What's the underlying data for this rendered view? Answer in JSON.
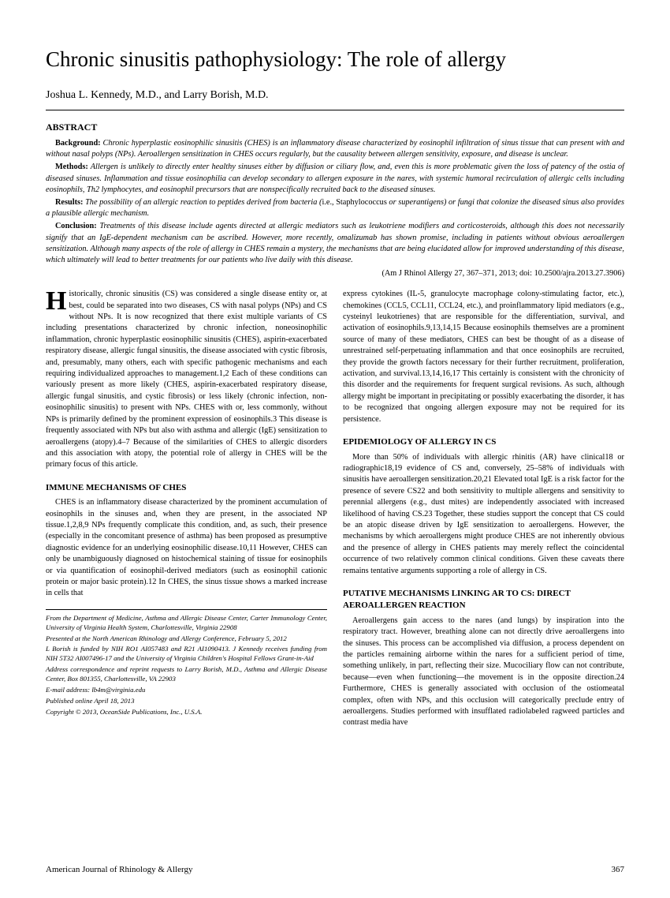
{
  "title": "Chronic sinusitis pathophysiology: The role of allergy",
  "authors": "Joshua L. Kennedy, M.D., and Larry Borish, M.D.",
  "abstract_heading": "ABSTRACT",
  "abstract": {
    "background_label": "Background:",
    "background": " Chronic hyperplastic eosinophilic sinusitis (CHES) is an inflammatory disease characterized by eosinophil infiltration of sinus tissue that can present with and without nasal polyps (NPs). Aeroallergen sensitization in CHES occurs regularly, but the causality between allergen sensitivity, exposure, and disease is unclear.",
    "methods_label": "Methods:",
    "methods": " Allergen is unlikely to directly enter healthy sinuses either by diffusion or ciliary flow, and, even this is more problematic given the loss of patency of the ostia of diseased sinuses. Inflammation and tissue eosinophilia can develop secondary to allergen exposure in the nares, with systemic humoral recirculation of allergic cells including eosinophils, Th2 lymphocytes, and eosinophil precursors that are nonspecifically recruited back to the diseased sinuses.",
    "results_label": "Results:",
    "results_pre": " The possibility of an allergic reaction to peptides derived from bacteria (",
    "results_mid": "i.e., Staphylococcus",
    "results_post": " or superantigens) or fungi that colonize the diseased sinus also provides a plausible allergic mechanism.",
    "conclusion_label": "Conclusion:",
    "conclusion": " Treatments of this disease include agents directed at allergic mediators such as leukotriene modifiers and corticosteroids, although this does not necessarily signify that an IgE-dependent mechanism can be ascribed. However, more recently, omalizumab has shown promise, including in patients without obvious aeroallergen sensitization. Although many aspects of the role of allergy in CHES remain a mystery, the mechanisms that are being elucidated allow for improved understanding of this disease, which ultimately will lead to better treatments for our patients who live daily with this disease."
  },
  "citation": "(Am J Rhinol Allergy 27, 367–371, 2013; doi: 10.2500/ajra.2013.27.3906)",
  "left_col": {
    "dropcap": "H",
    "intro": "istorically, chronic sinusitis (CS) was considered a single disease entity or, at best, could be separated into two diseases, CS with nasal polyps (NPs) and CS without NPs. It is now recognized that there exist multiple variants of CS including presentations characterized by chronic infection, noneosinophilic inflammation, chronic hyperplastic eosinophilic sinusitis (CHES), aspirin-exacerbated respiratory disease, allergic fungal sinusitis, the disease associated with cystic fibrosis, and, presumably, many others, each with specific pathogenic mechanisms and each requiring individualized approaches to management.1,2 Each of these conditions can variously present as more likely (CHES, aspirin-exacerbated respiratory disease, allergic fungal sinusitis, and cystic fibrosis) or less likely (chronic infection, non-eosinophilic sinusitis) to present with NPs. CHES with or, less commonly, without NPs is primarily defined by the prominent expression of eosinophils.3 This disease is frequently associated with NPs but also with asthma and allergic (IgE) sensitization to aeroallergens (atopy).4–7 Because of the similarities of CHES to allergic disorders and this association with atopy, the potential role of allergy in CHES will be the primary focus of this article.",
    "heading1": "IMMUNE MECHANISMS OF CHES",
    "para1": "CHES is an inflammatory disease characterized by the prominent accumulation of eosinophils in the sinuses and, when they are present, in the associated NP tissue.1,2,8,9 NPs frequently complicate this condition, and, as such, their presence (especially in the concomitant presence of asthma) has been proposed as presumptive diagnostic evidence for an underlying eosinophilic disease.10,11 However, CHES can only be unambiguously diagnosed on histochemical staining of tissue for eosinophils or via quantification of eosinophil-derived mediators (such as eosinophil cationic protein or major basic protein).12 In CHES, the sinus tissue shows a marked increase in cells that"
  },
  "right_col": {
    "para1": "express cytokines (IL-5, granulocyte macrophage colony-stimulating factor, etc.), chemokines (CCL5, CCL11, CCL24, etc.), and proinflammatory lipid mediators (e.g., cysteinyl leukotrienes) that are responsible for the differentiation, survival, and activation of eosinophils.9,13,14,15 Because eosinophils themselves are a prominent source of many of these mediators, CHES can best be thought of as a disease of unrestrained self-perpetuating inflammation and that once eosinophils are recruited, they provide the growth factors necessary for their further recruitment, proliferation, activation, and survival.13,14,16,17 This certainly is consistent with the chronicity of this disorder and the requirements for frequent surgical revisions. As such, although allergy might be important in precipitating or possibly exacerbating the disorder, it has to be recognized that ongoing allergen exposure may not be required for its persistence.",
    "heading1": "EPIDEMIOLOGY OF ALLERGY IN CS",
    "para2": "More than 50% of individuals with allergic rhinitis (AR) have clinical18 or radiographic18,19 evidence of CS and, conversely, 25–58% of individuals with sinusitis have aeroallergen sensitization.20,21 Elevated total IgE is a risk factor for the presence of severe CS22 and both sensitivity to multiple allergens and sensitivity to perennial allergens (e.g., dust mites) are independently associated with increased likelihood of having CS.23 Together, these studies support the concept that CS could be an atopic disease driven by IgE sensitization to aeroallergens. However, the mechanisms by which aeroallergens might produce CHES are not inherently obvious and the presence of allergy in CHES patients may merely reflect the coincidental occurrence of two relatively common clinical conditions. Given these caveats there remains tentative arguments supporting a role of allergy in CS.",
    "heading2": "PUTATIVE MECHANISMS LINKING AR TO CS: DIRECT AEROALLERGEN REACTION",
    "para3": "Aeroallergens gain access to the nares (and lungs) by inspiration into the respiratory tract. However, breathing alone can not directly drive aeroallergens into the sinuses. This process can be accomplished via diffusion, a process dependent on the particles remaining airborne within the nares for a sufficient period of time, something unlikely, in part, reflecting their size. Mucociliary flow can not contribute, because—even when functioning—the movement is in the opposite direction.24 Furthermore, CHES is generally associated with occlusion of the ostiomeatal complex, often with NPs, and this occlusion will categorically preclude entry of aeroallergens. Studies performed with insufflated radiolabeled ragweed particles and contrast media have"
  },
  "footnote": {
    "l1": "From the Department of Medicine, Asthma and Allergic Disease Center, Carter Immunology Center, University of Virginia Health System, Charlottesville, Virginia 22908",
    "l2": "Presented at the North American Rhinology and Allergy Conference, February 5, 2012",
    "l3": "L Borish is funded by NIH RO1 AI057483 and R21 AI1090413. J Kennedy receives funding from NIH 5T32 AI007496-17 and the University of Virginia Children's Hospital Fellows Grant-in-Aid",
    "l4": "Address correspondence and reprint requests to Larry Borish, M.D., Asthma and Allergic Disease Center, Box 801355, Charlottesville, VA 22903",
    "l5": "E-mail address: lb4m@virginia.edu",
    "l6": "Published online April 18, 2013",
    "l7": "Copyright © 2013, OceanSide Publications, Inc., U.S.A."
  },
  "footer": {
    "journal": "American Journal of Rhinology & Allergy",
    "page": "367"
  }
}
